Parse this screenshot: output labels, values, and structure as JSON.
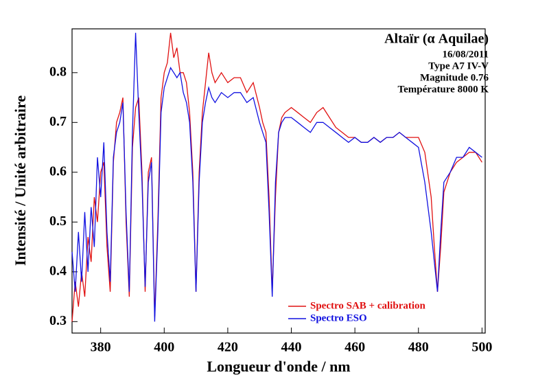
{
  "chart_data": {
    "type": "line",
    "title": "Altaïr (α Aquilae)",
    "annotations": [
      "16/08/2011",
      "Type A7 IV-V",
      "Magnitude 0.76",
      "Température 8000 K"
    ],
    "x_label": "Longueur d'onde / nm",
    "y_label": "Intensité / Unité arbitraire",
    "xlim": [
      371,
      501
    ],
    "ylim": [
      0.277,
      0.888
    ],
    "xticks": [
      380,
      400,
      420,
      440,
      460,
      480,
      500
    ],
    "yticks": [
      0.3,
      0.4,
      0.5,
      0.6,
      0.7,
      0.8
    ],
    "grid": false,
    "x": [
      371,
      372,
      373,
      374,
      375,
      376,
      377,
      378,
      379,
      380,
      381,
      382,
      383,
      384,
      385,
      386,
      387,
      388,
      389,
      390,
      391,
      392,
      393,
      394,
      395,
      396,
      397,
      398,
      399,
      400,
      401,
      402,
      403,
      404,
      405,
      406,
      407,
      408,
      409,
      410,
      411,
      412,
      413,
      414,
      415,
      416,
      418,
      420,
      422,
      424,
      426,
      428,
      430,
      431,
      432,
      433,
      434,
      435,
      436,
      437,
      438,
      440,
      442,
      444,
      446,
      448,
      450,
      452,
      454,
      456,
      458,
      460,
      462,
      464,
      466,
      468,
      470,
      472,
      474,
      476,
      478,
      480,
      482,
      484,
      485,
      486,
      487,
      488,
      490,
      492,
      494,
      496,
      498,
      500
    ],
    "series": [
      {
        "name": "Spectro SAB + calibration",
        "color": "#e01010",
        "values": [
          0.3,
          0.38,
          0.33,
          0.4,
          0.35,
          0.47,
          0.42,
          0.55,
          0.5,
          0.6,
          0.62,
          0.45,
          0.36,
          0.62,
          0.7,
          0.72,
          0.75,
          0.5,
          0.35,
          0.65,
          0.73,
          0.75,
          0.6,
          0.36,
          0.6,
          0.63,
          0.31,
          0.5,
          0.75,
          0.8,
          0.82,
          0.88,
          0.83,
          0.85,
          0.8,
          0.8,
          0.78,
          0.72,
          0.6,
          0.36,
          0.6,
          0.72,
          0.78,
          0.84,
          0.8,
          0.78,
          0.8,
          0.78,
          0.79,
          0.79,
          0.76,
          0.78,
          0.73,
          0.7,
          0.68,
          0.55,
          0.36,
          0.55,
          0.68,
          0.71,
          0.72,
          0.73,
          0.72,
          0.71,
          0.7,
          0.72,
          0.73,
          0.71,
          0.69,
          0.68,
          0.67,
          0.67,
          0.66,
          0.66,
          0.67,
          0.66,
          0.67,
          0.67,
          0.68,
          0.67,
          0.67,
          0.67,
          0.64,
          0.55,
          0.45,
          0.36,
          0.45,
          0.56,
          0.6,
          0.62,
          0.63,
          0.64,
          0.64,
          0.62
        ]
      },
      {
        "name": "Spectro ESO",
        "color": "#1010e0",
        "values": [
          0.44,
          0.36,
          0.48,
          0.38,
          0.52,
          0.4,
          0.53,
          0.45,
          0.63,
          0.55,
          0.66,
          0.48,
          0.38,
          0.63,
          0.68,
          0.7,
          0.74,
          0.52,
          0.36,
          0.68,
          0.88,
          0.72,
          0.58,
          0.37,
          0.58,
          0.62,
          0.3,
          0.48,
          0.72,
          0.77,
          0.79,
          0.81,
          0.8,
          0.79,
          0.8,
          0.76,
          0.74,
          0.7,
          0.58,
          0.36,
          0.58,
          0.7,
          0.74,
          0.77,
          0.75,
          0.74,
          0.76,
          0.75,
          0.76,
          0.76,
          0.74,
          0.75,
          0.7,
          0.68,
          0.66,
          0.52,
          0.35,
          0.58,
          0.68,
          0.7,
          0.71,
          0.71,
          0.7,
          0.69,
          0.68,
          0.7,
          0.7,
          0.69,
          0.68,
          0.67,
          0.66,
          0.67,
          0.66,
          0.66,
          0.67,
          0.66,
          0.67,
          0.67,
          0.68,
          0.67,
          0.66,
          0.65,
          0.58,
          0.48,
          0.42,
          0.36,
          0.48,
          0.58,
          0.6,
          0.63,
          0.63,
          0.65,
          0.64,
          0.63
        ]
      }
    ]
  }
}
